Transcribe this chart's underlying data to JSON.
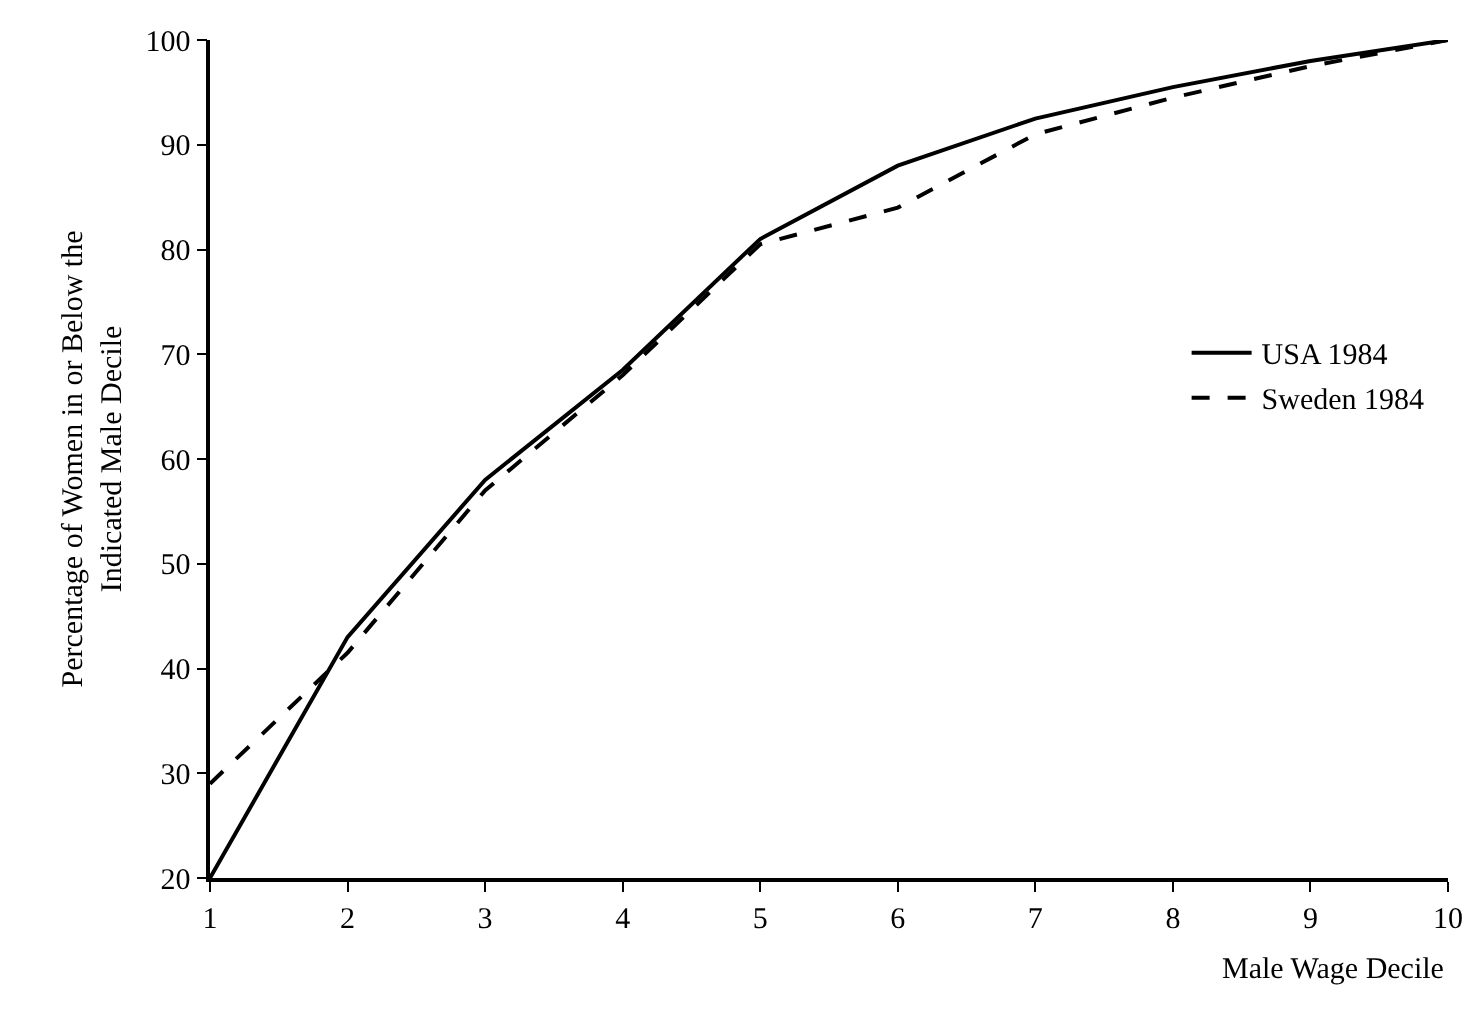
{
  "chart_data": {
    "type": "line",
    "xlabel": "Male Wage Decile",
    "ylabel": "Percentage of Women in or Below the Indicated Male Decile",
    "x": [
      1,
      2,
      3,
      4,
      5,
      6,
      7,
      8,
      9,
      10
    ],
    "series": [
      {
        "name": "USA 1984",
        "color": "#000000",
        "line_style": "solid",
        "values": [
          20,
          43,
          58,
          68.5,
          81,
          88,
          92.5,
          95.5,
          98,
          100
        ]
      },
      {
        "name": "Sweden 1984",
        "color": "#000000",
        "line_style": "dashed",
        "values": [
          29,
          41.5,
          57,
          68,
          80.5,
          84,
          91,
          94.5,
          97.5,
          100
        ]
      }
    ],
    "xlim": [
      1,
      10
    ],
    "xticks": [
      1,
      2,
      3,
      4,
      5,
      6,
      7,
      8,
      9,
      10
    ],
    "ylim": [
      20,
      100
    ],
    "yticks": [
      20,
      30,
      40,
      50,
      60,
      70,
      80,
      90,
      100
    ],
    "grid": false,
    "legend": "right",
    "marker": "none"
  }
}
